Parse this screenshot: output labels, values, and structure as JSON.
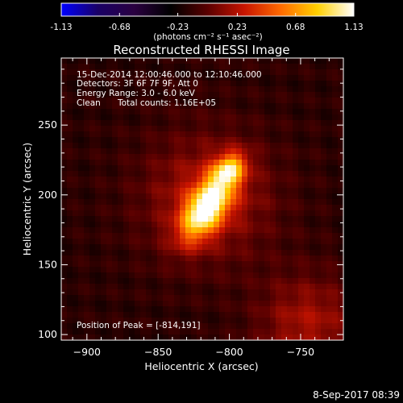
{
  "colorbar": {
    "tick_labels": [
      "-1.13",
      "-0.68",
      "-0.23",
      "0.23",
      "0.68",
      "1.13"
    ],
    "tick_values": [
      -1.13,
      -0.68,
      -0.23,
      0.23,
      0.68,
      1.13
    ],
    "range": [
      -1.13,
      1.13
    ],
    "unit_label": "(photons cm⁻² s⁻¹ asec⁻²)",
    "colors": [
      "#0000ff",
      "#1a0066",
      "#2a0040",
      "#000000",
      "#5a0000",
      "#c81400",
      "#ff6a00",
      "#ffd000",
      "#ffffff"
    ]
  },
  "chart_data": {
    "type": "heatmap",
    "title": "Reconstructed RHESSI Image",
    "xlabel": "Heliocentric X (arcsec)",
    "ylabel": "Heliocentric Y (arcsec)",
    "xlim": [
      -918,
      -720
    ],
    "ylim": [
      96,
      298
    ],
    "x_ticks": [
      -900,
      -850,
      -800,
      -750
    ],
    "y_ticks": [
      100,
      150,
      200,
      250
    ],
    "x_tick_labels": [
      "−900",
      "−850",
      "−800",
      "−750"
    ],
    "y_tick_labels": [
      "100",
      "150",
      "200",
      "250"
    ],
    "peak_position": [
      -814,
      191
    ],
    "annotations": {
      "time_range": "15-Dec-2014 12:00:46.000 to 12:10:46.000",
      "detectors": "Detectors: 3F 6F 7F 9F, Att 0",
      "energy_range": "Energy Range: 3.0 - 6.0 keV",
      "method": "Clean",
      "total_counts": "Total counts: 1.16E+05",
      "peak_label": "Position of Peak = [-814,191]"
    },
    "sources": [
      {
        "x": -816,
        "y": 191,
        "sx": 9,
        "sy": 18,
        "angle_deg": 58,
        "amp": 1.13
      },
      {
        "x": -800,
        "y": 218,
        "sx": 7,
        "sy": 9,
        "angle_deg": 50,
        "amp": 0.75
      }
    ],
    "background_level": -0.15
  },
  "footer": {
    "timestamp": "8-Sep-2017 08:39"
  }
}
